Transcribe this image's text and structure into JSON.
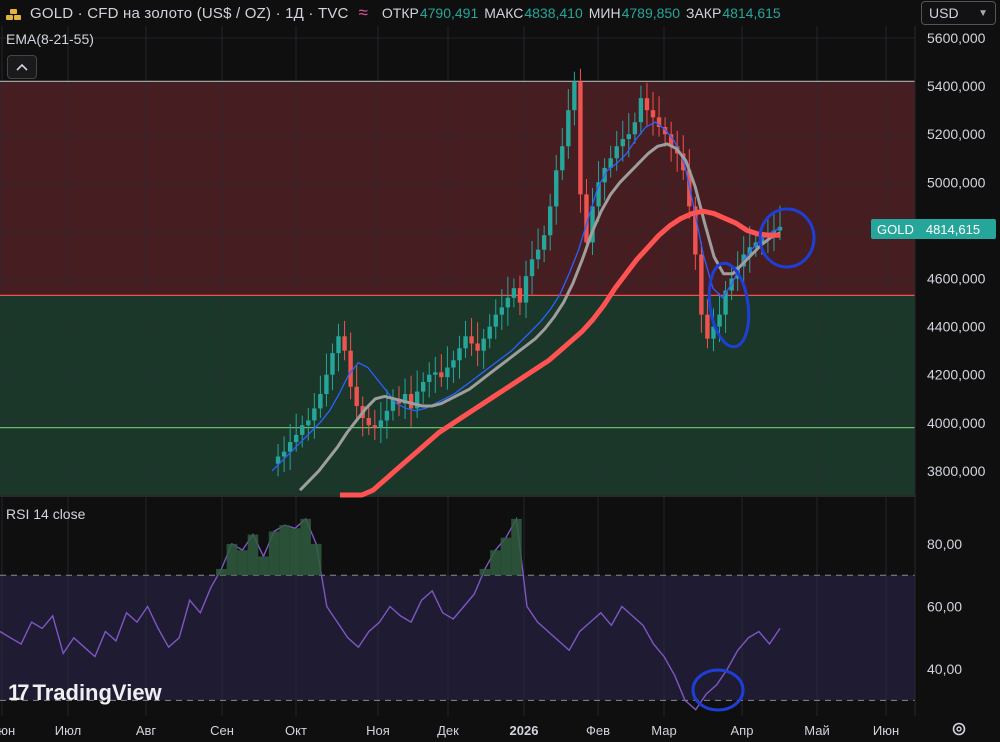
{
  "header": {
    "symbol": "GOLD · CFD на золото (US$ / OZ) · 1Д · TVC",
    "open_label": "ОТКР",
    "open_value": "4790,491",
    "high_label": "МАКС",
    "high_value": "4838,410",
    "low_label": "МИН",
    "low_value": "4789,850",
    "close_label": "ЗАКР",
    "close_value": "4814,615",
    "currency": "USD",
    "brand_icon": "gold-bars-icon",
    "indicator_icon": "waves-icon"
  },
  "colors": {
    "up": "#26a69a",
    "down": "#ef5350",
    "ema8": "#2962ff",
    "ema21": "#9e9e9e",
    "ema55": "#ff5252",
    "rsi": "#7e57c2",
    "zone_red": "#4a1f22",
    "zone_green": "#1c3a2b",
    "annotation": "#1e3fd6"
  },
  "indicators": {
    "ema_label": "EMA(8-21-55)",
    "rsi_label": "RSI 14 close"
  },
  "badge": {
    "name": "GOLD",
    "price": "4814,615"
  },
  "branding": {
    "logo_text": "TradingView"
  },
  "chart_data": [
    {
      "type": "line",
      "panel": "price",
      "subtype": "candlestick",
      "ylim": [
        3700,
        5650
      ],
      "y_ticks": [
        "3800,000",
        "4000,000",
        "4200,000",
        "4400,000",
        "4600,000",
        "4800,000",
        "5000,000",
        "5200,000",
        "5400,000",
        "5600,000"
      ],
      "x_ticks": [
        "Июн",
        "Июл",
        "Авг",
        "Сен",
        "Окт",
        "Ноя",
        "Дек",
        "2026",
        "Фев",
        "Мар",
        "Апр",
        "Май",
        "Июн"
      ],
      "horizontal_levels": [
        5420,
        4530,
        3980
      ],
      "zones": [
        {
          "from": 4530,
          "to": 5420,
          "color": "red"
        },
        {
          "from": 3700,
          "to": 4530,
          "color": "green"
        }
      ],
      "candles_close": [
        3830,
        3860,
        3880,
        3920,
        3950,
        3990,
        4010,
        4060,
        4120,
        4200,
        4290,
        4360,
        4300,
        4150,
        4070,
        4020,
        3990,
        3980,
        4010,
        4050,
        4100,
        4080,
        4120,
        4060,
        4130,
        4170,
        4200,
        4210,
        4190,
        4230,
        4260,
        4310,
        4360,
        4330,
        4300,
        4350,
        4400,
        4450,
        4480,
        4520,
        4560,
        4500,
        4610,
        4680,
        4720,
        4780,
        4900,
        5050,
        5150,
        5300,
        5420,
        4950,
        4750,
        4900,
        5000,
        5060,
        5100,
        5150,
        5180,
        5200,
        5250,
        5350,
        5300,
        5270,
        5230,
        5200,
        5150,
        5120,
        5050,
        4900,
        4700,
        4450,
        4350,
        4400,
        4450,
        4550,
        4600,
        4650,
        4700,
        4730,
        4750,
        4770,
        4790,
        4800,
        4815
      ],
      "series": [
        {
          "name": "EMA 8",
          "values": [
            3800,
            3840,
            3880,
            3920,
            3960,
            4000,
            4050,
            4120,
            4200,
            4250,
            4230,
            4180,
            4130,
            4080,
            4060,
            4050,
            4060,
            4080,
            4100,
            4120,
            4150,
            4180,
            4210,
            4240,
            4270,
            4300,
            4340,
            4380,
            4420,
            4470,
            4530,
            4620,
            4720,
            4850,
            4980,
            5050,
            5080,
            5120,
            5180,
            5230,
            5250,
            5220,
            5170,
            5080,
            4900,
            4700,
            4560,
            4520,
            4580,
            4660,
            4720,
            4760,
            4790,
            4810
          ]
        },
        {
          "name": "EMA 21",
          "values": [
            3720,
            3760,
            3800,
            3850,
            3900,
            3960,
            4010,
            4060,
            4100,
            4110,
            4100,
            4090,
            4080,
            4070,
            4070,
            4080,
            4100,
            4120,
            4140,
            4170,
            4200,
            4230,
            4260,
            4290,
            4320,
            4350,
            4390,
            4440,
            4500,
            4580,
            4680,
            4790,
            4880,
            4950,
            5000,
            5040,
            5080,
            5120,
            5150,
            5160,
            5140,
            5090,
            4980,
            4830,
            4690,
            4620,
            4620,
            4660,
            4700,
            4740,
            4770,
            4790
          ]
        },
        {
          "name": "EMA 55",
          "values": [
            3600,
            3640,
            3680,
            3720,
            3760,
            3800,
            3840,
            3880,
            3920,
            3960,
            3990,
            4020,
            4050,
            4080,
            4110,
            4140,
            4170,
            4200,
            4230,
            4260,
            4300,
            4340,
            4380,
            4430,
            4490,
            4560,
            4620,
            4680,
            4730,
            4780,
            4820,
            4850,
            4870,
            4880,
            4870,
            4850,
            4830,
            4800,
            4785,
            4780,
            4780
          ]
        }
      ]
    },
    {
      "type": "line",
      "panel": "rsi",
      "ylim": [
        25,
        95
      ],
      "y_ticks": [
        "40,00",
        "60,00",
        "80,00"
      ],
      "bands": [
        70,
        30
      ],
      "series": [
        {
          "name": "RSI 14",
          "values": [
            52,
            50,
            48,
            55,
            53,
            57,
            45,
            50,
            47,
            44,
            52,
            49,
            58,
            55,
            60,
            53,
            47,
            50,
            62,
            58,
            66,
            72,
            80,
            78,
            83,
            76,
            84,
            86,
            85,
            88,
            80,
            60,
            55,
            50,
            47,
            52,
            55,
            60,
            57,
            55,
            62,
            65,
            58,
            56,
            60,
            64,
            72,
            78,
            82,
            88,
            60,
            55,
            52,
            49,
            46,
            52,
            55,
            58,
            54,
            60,
            57,
            54,
            48,
            44,
            38,
            30,
            27,
            32,
            35,
            40,
            46,
            50,
            52,
            48,
            53
          ]
        }
      ]
    }
  ]
}
